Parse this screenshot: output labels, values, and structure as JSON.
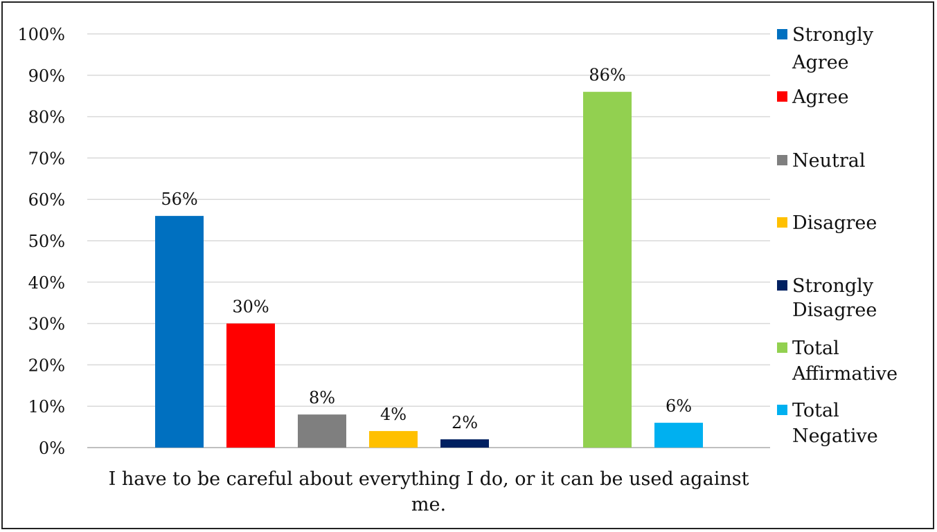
{
  "chart_data": {
    "type": "bar",
    "category_label": "I have to be careful about everything I do, or it can be used against me.",
    "category_label_lines": [
      "I have to be careful about everything I do, or it can be used against",
      "me."
    ],
    "ylim": [
      0,
      100
    ],
    "y_ticks": [
      "0%",
      "10%",
      "20%",
      "30%",
      "40%",
      "50%",
      "60%",
      "70%",
      "80%",
      "90%",
      "100%"
    ],
    "grid": true,
    "legend_position": "right",
    "series": [
      {
        "name": "Strongly Agree",
        "name_lines": [
          "Strongly",
          "Agree"
        ],
        "value": 56,
        "label": "56%",
        "color": "#0070C0"
      },
      {
        "name": "Agree",
        "name_lines": [
          "Agree"
        ],
        "value": 30,
        "label": "30%",
        "color": "#FF0000"
      },
      {
        "name": "Neutral",
        "name_lines": [
          "Neutral"
        ],
        "value": 8,
        "label": "8%",
        "color": "#7F7F7F"
      },
      {
        "name": "Disagree",
        "name_lines": [
          "Disagree"
        ],
        "value": 4,
        "label": "4%",
        "color": "#FFC000"
      },
      {
        "name": "Strongly Disagree",
        "name_lines": [
          "Strongly",
          "Disagree"
        ],
        "value": 2,
        "label": "2%",
        "color": "#002060"
      },
      {
        "name": "Total Affirmative",
        "name_lines": [
          "Total",
          "Affirmative"
        ],
        "value": 86,
        "label": "86%",
        "color": "#92D050"
      },
      {
        "name": "Total Negative",
        "name_lines": [
          "Total",
          "Negative"
        ],
        "value": 6,
        "label": "6%",
        "color": "#00B0F0"
      }
    ],
    "bar_slots": [
      0,
      1,
      2,
      3,
      4,
      6,
      7
    ]
  }
}
